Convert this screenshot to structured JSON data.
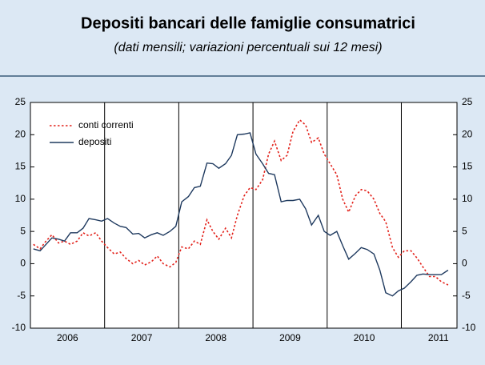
{
  "chart_data": {
    "type": "line",
    "title": "Depositi bancari delle famiglie consumatrici",
    "subtitle": "(dati mensili; variazioni percentuali sui 12 mesi)",
    "x": [
      2006.04,
      2006.13,
      2006.21,
      2006.29,
      2006.38,
      2006.46,
      2006.54,
      2006.63,
      2006.71,
      2006.79,
      2006.88,
      2006.96,
      2007.04,
      2007.13,
      2007.21,
      2007.29,
      2007.38,
      2007.46,
      2007.54,
      2007.63,
      2007.71,
      2007.79,
      2007.88,
      2007.96,
      2008.04,
      2008.13,
      2008.21,
      2008.29,
      2008.38,
      2008.46,
      2008.54,
      2008.63,
      2008.71,
      2008.79,
      2008.88,
      2008.96,
      2009.04,
      2009.13,
      2009.21,
      2009.29,
      2009.38,
      2009.46,
      2009.54,
      2009.63,
      2009.71,
      2009.79,
      2009.88,
      2009.96,
      2010.04,
      2010.13,
      2010.21,
      2010.29,
      2010.38,
      2010.46,
      2010.54,
      2010.63,
      2010.71,
      2010.79,
      2010.88,
      2010.96,
      2011.04,
      2011.13,
      2011.21,
      2011.29,
      2011.38,
      2011.46,
      2011.54,
      2011.63
    ],
    "series": [
      {
        "name": "conti correnti",
        "color": "#e3231c",
        "dash": "dotted",
        "values": [
          3.0,
          2.3,
          3.5,
          4.5,
          3.2,
          3.5,
          3.0,
          3.5,
          4.8,
          4.3,
          4.8,
          3.5,
          2.5,
          1.5,
          1.8,
          0.8,
          0.0,
          0.5,
          -0.2,
          0.3,
          1.2,
          0.0,
          -0.5,
          0.2,
          2.6,
          2.3,
          3.5,
          3.0,
          6.8,
          5.0,
          3.8,
          5.5,
          4.0,
          7.5,
          10.5,
          11.8,
          11.5,
          13.0,
          17.0,
          19.0,
          16.0,
          16.8,
          20.5,
          22.3,
          21.5,
          18.8,
          19.5,
          17.0,
          15.5,
          13.8,
          10.0,
          8.0,
          10.5,
          11.5,
          11.3,
          10.0,
          7.8,
          6.5,
          2.5,
          1.0,
          2.0,
          2.0,
          0.9,
          -0.5,
          -2.0,
          -2.0,
          -2.8,
          -3.3
        ]
      },
      {
        "name": "depositi",
        "color": "#1f3a5f",
        "dash": "solid",
        "values": [
          2.3,
          2.0,
          3.0,
          4.0,
          3.8,
          3.5,
          4.8,
          4.8,
          5.5,
          7.0,
          6.8,
          6.6,
          7.0,
          6.3,
          5.8,
          5.6,
          4.6,
          4.7,
          4.0,
          4.5,
          4.8,
          4.4,
          5.0,
          5.8,
          9.6,
          10.4,
          11.8,
          12.0,
          15.6,
          15.5,
          14.8,
          15.5,
          16.8,
          20.0,
          20.1,
          20.3,
          17.0,
          15.5,
          14.0,
          13.8,
          9.6,
          9.8,
          9.8,
          10.0,
          8.5,
          6.0,
          7.5,
          5.0,
          4.4,
          5.0,
          2.8,
          0.7,
          1.6,
          2.5,
          2.2,
          1.5,
          -1.0,
          -4.5,
          -5.0,
          -4.2,
          -3.8,
          -2.8,
          -1.8,
          -1.6,
          -1.7,
          -1.7,
          -1.7,
          -1.0
        ]
      }
    ],
    "xlim": [
      2006,
      2011.75
    ],
    "xticks": [
      {
        "value": 2006.5,
        "label": "2006"
      },
      {
        "value": 2007.5,
        "label": "2007"
      },
      {
        "value": 2008.5,
        "label": "2008"
      },
      {
        "value": 2009.5,
        "label": "2009"
      },
      {
        "value": 2010.5,
        "label": "2010"
      },
      {
        "value": 2011.5,
        "label": "2011"
      }
    ],
    "ylim": [
      -10,
      25
    ],
    "yticks": [
      -10,
      -5,
      0,
      5,
      10,
      15,
      20,
      25
    ],
    "legend": "upper left"
  }
}
